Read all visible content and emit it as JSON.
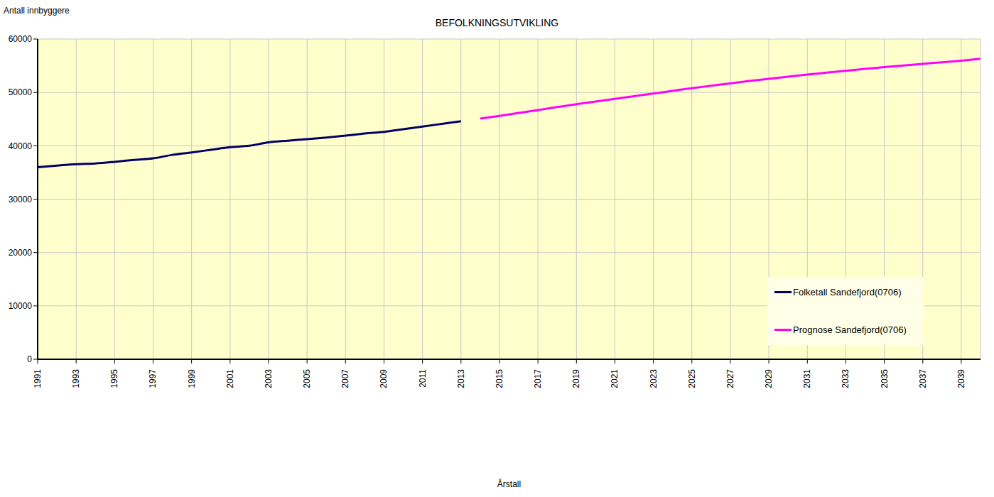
{
  "chart_data": {
    "type": "line",
    "title": "BEFOLKNINGSUTVIKLING",
    "y_label": "Antall innbyggere",
    "x_label": "Årstall",
    "x": [
      1991,
      1992,
      1993,
      1994,
      1995,
      1996,
      1997,
      1998,
      1999,
      2000,
      2001,
      2002,
      2003,
      2004,
      2005,
      2006,
      2007,
      2008,
      2009,
      2010,
      2011,
      2012,
      2013,
      2014,
      2015,
      2016,
      2017,
      2018,
      2019,
      2020,
      2021,
      2022,
      2023,
      2024,
      2025,
      2026,
      2027,
      2028,
      2029,
      2030,
      2031,
      2032,
      2033,
      2034,
      2035,
      2036,
      2037,
      2038,
      2039,
      2040
    ],
    "series": [
      {
        "name": "Folketall Sandefjord(0706)",
        "color": "#000066",
        "values": [
          36000,
          36300,
          36550,
          36700,
          37000,
          37350,
          37650,
          38300,
          38750,
          39250,
          39750,
          40000,
          40650,
          40950,
          41250,
          41550,
          41900,
          42300,
          42600,
          43100,
          43600,
          44100,
          44600,
          null,
          null,
          null,
          null,
          null,
          null,
          null,
          null,
          null,
          null,
          null,
          null,
          null,
          null,
          null,
          null,
          null,
          null,
          null,
          null,
          null,
          null,
          null,
          null,
          null,
          null,
          null
        ]
      },
      {
        "name": "Prognose Sandefjord(0706)",
        "color": "#ff00ff",
        "values": [
          null,
          null,
          null,
          null,
          null,
          null,
          null,
          null,
          null,
          null,
          null,
          null,
          null,
          null,
          null,
          null,
          null,
          null,
          null,
          null,
          null,
          null,
          null,
          45100,
          45600,
          46150,
          46700,
          47250,
          47800,
          48300,
          48800,
          49300,
          49800,
          50300,
          50800,
          51250,
          51700,
          52150,
          52550,
          52950,
          53350,
          53700,
          54050,
          54400,
          54750,
          55050,
          55350,
          55650,
          55950,
          56300
        ]
      }
    ],
    "xlim": [
      1991,
      2040
    ],
    "xticks": [
      1991,
      1993,
      1995,
      1997,
      1999,
      2001,
      2003,
      2005,
      2007,
      2009,
      2011,
      2013,
      2015,
      2017,
      2019,
      2021,
      2023,
      2025,
      2027,
      2029,
      2031,
      2033,
      2035,
      2037,
      2039
    ],
    "ylim": [
      0,
      60000
    ],
    "yticks": [
      0,
      10000,
      20000,
      30000,
      40000,
      50000,
      60000
    ],
    "grid": true,
    "legend": "right"
  }
}
